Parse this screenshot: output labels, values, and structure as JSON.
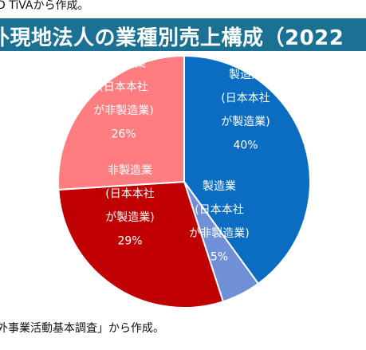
{
  "source_top": "D TiVAから作成。",
  "title": "外現地法人の業種別売上構成（2022",
  "source_bottom": "外事業活動基本調査」から作成。",
  "chart_data": {
    "type": "pie",
    "title": "外現地法人の業種別売上構成（2022",
    "start_angle_deg": 0,
    "direction": "clockwise",
    "slices": [
      {
        "label_lines": [
          "製造業",
          "(日本本社",
          "が製造業)",
          "40%"
        ],
        "value": 40,
        "color": "#0a6dc2",
        "text_color": "#ffffff"
      },
      {
        "label_lines": [
          "製造業",
          "(日本本社",
          "が非製造業)",
          "5%"
        ],
        "value": 5,
        "color": "#6f8fd6",
        "text_color": "#ffffff"
      },
      {
        "label_lines": [
          "非製造業",
          "(日本本社",
          "が製造業)",
          "29%"
        ],
        "value": 29,
        "color": "#c00000",
        "text_color": "#ffffff"
      },
      {
        "label_lines": [
          "非製造業",
          "(日本本社",
          "が非製造業)",
          "26%"
        ],
        "value": 26,
        "color": "#ff7c80",
        "text_color": "#ffffff"
      }
    ]
  }
}
